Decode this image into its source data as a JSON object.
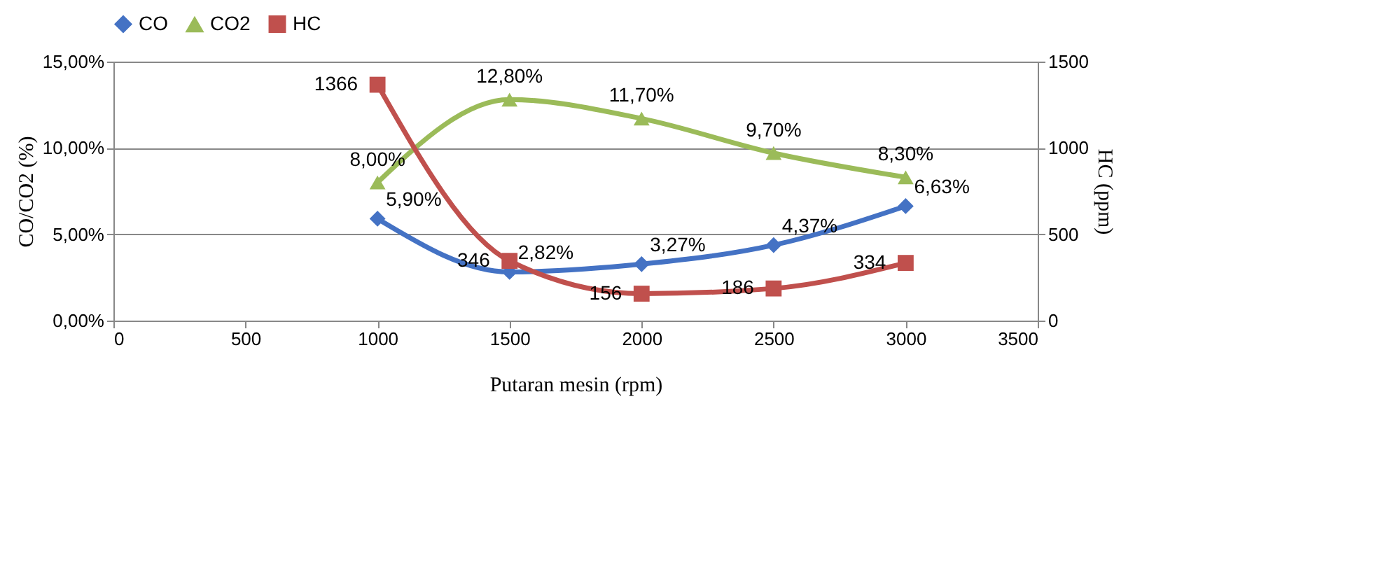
{
  "chart_data": {
    "type": "line",
    "xlabel": "Putaran mesin (rpm)",
    "ylabel": "CO/CO2 (%)",
    "y2label": "HC (ppm)",
    "xlim": [
      0,
      3500
    ],
    "xticks": [
      0,
      500,
      1000,
      1500,
      2000,
      2500,
      3000,
      3500
    ],
    "ylim": [
      0,
      15
    ],
    "yticks": [
      {
        "value": 0,
        "label": "0,00%"
      },
      {
        "value": 5,
        "label": "5,00%"
      },
      {
        "value": 10,
        "label": "10,00%"
      },
      {
        "value": 15,
        "label": "15,00%"
      }
    ],
    "y2lim": [
      0,
      1500
    ],
    "y2ticks": [
      0,
      500,
      1000,
      1500
    ],
    "x": [
      1000,
      1500,
      2000,
      2500,
      3000
    ],
    "series": [
      {
        "name": "CO",
        "color": "#4472c4",
        "marker": "diamond",
        "values": [
          5.9,
          2.82,
          3.27,
          4.37,
          6.63
        ],
        "value_labels": [
          "5,90%",
          "2,82%",
          "3,27%",
          "4,37%",
          "6,63%"
        ]
      },
      {
        "name": "CO2",
        "color": "#9bbb59",
        "marker": "triangle",
        "values": [
          8.0,
          12.8,
          11.7,
          9.7,
          8.3
        ],
        "value_labels": [
          "8,00%",
          "12,80%",
          "11,70%",
          "9,70%",
          "8,30%"
        ]
      },
      {
        "name": "HC",
        "color": "#c0504d",
        "marker": "square",
        "axis": "y2",
        "values": [
          1366,
          346,
          156,
          186,
          334
        ],
        "value_labels": [
          "1366",
          "346",
          "156",
          "186",
          "334"
        ]
      }
    ],
    "grid": "y",
    "legend": "top"
  }
}
